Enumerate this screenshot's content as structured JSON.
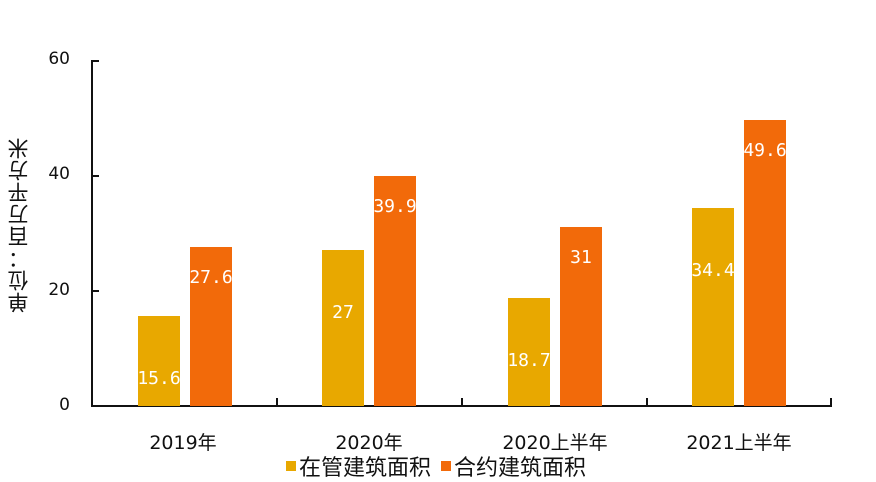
{
  "chart_data": {
    "type": "bar",
    "title": "",
    "xlabel": "",
    "ylabel": "单位：百万平方米",
    "ylim": [
      0,
      60
    ],
    "yticks": [
      "0",
      "20",
      "40",
      "60"
    ],
    "categories": [
      "2019年",
      "2020年",
      "2020上半年",
      "2021上半年"
    ],
    "series": [
      {
        "name": "在管建筑面积",
        "color": "#E8A800",
        "values": [
          15.6,
          27,
          18.7,
          34.4
        ],
        "labels": [
          "15.6",
          "27",
          "18.7",
          "34.4"
        ]
      },
      {
        "name": "合约建筑面积",
        "color": "#F26A0A",
        "values": [
          27.6,
          39.9,
          31,
          49.6
        ],
        "labels": [
          "27.6",
          "39.9",
          "31",
          "49.6"
        ]
      }
    ],
    "grid": false,
    "legend_position": "bottom"
  }
}
